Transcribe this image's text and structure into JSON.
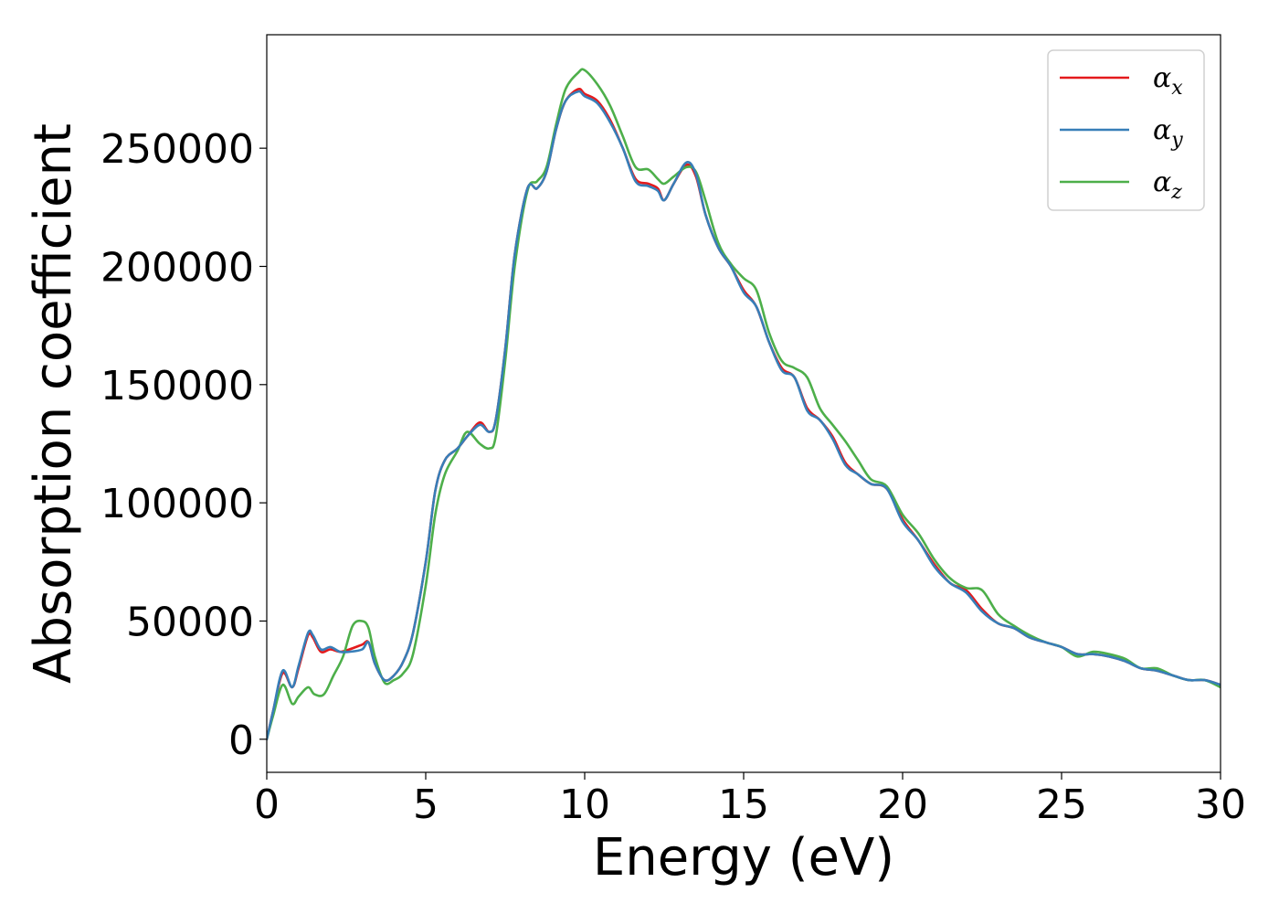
{
  "chart_data": {
    "type": "line",
    "xlabel": "Energy (eV)",
    "ylabel": "Absorption coefficient",
    "xlim": [
      0,
      30
    ],
    "ylim": [
      -14000,
      298000
    ],
    "xticks": [
      0,
      5,
      10,
      15,
      20,
      25,
      30
    ],
    "yticks": [
      0,
      50000,
      100000,
      150000,
      200000,
      250000
    ],
    "legend_position": "top-right",
    "grid": false,
    "series": [
      {
        "name": "αx",
        "symbol": "α",
        "subscript": "x",
        "color": "#e41a1c",
        "x": [
          0,
          0.2,
          0.5,
          0.8,
          1.0,
          1.3,
          1.45,
          1.7,
          2.0,
          2.3,
          2.6,
          3.0,
          3.2,
          3.4,
          3.7,
          4.0,
          4.3,
          4.6,
          5.0,
          5.3,
          5.6,
          6.0,
          6.3,
          6.7,
          7.0,
          7.2,
          7.5,
          7.8,
          8.2,
          8.5,
          8.8,
          9.1,
          9.4,
          9.8,
          10.0,
          10.4,
          10.8,
          11.2,
          11.6,
          12.0,
          12.3,
          12.5,
          12.8,
          13.2,
          13.5,
          13.8,
          14.2,
          14.6,
          15.0,
          15.4,
          15.8,
          16.2,
          16.6,
          17.0,
          17.4,
          17.8,
          18.2,
          18.6,
          19.0,
          19.5,
          20.0,
          20.5,
          21.0,
          21.5,
          22.0,
          22.5,
          23.0,
          23.5,
          24.0,
          24.5,
          25.0,
          25.5,
          26.0,
          26.5,
          27.0,
          27.5,
          28.0,
          28.5,
          29.0,
          29.5,
          30.0
        ],
        "y": [
          0,
          12000,
          28000,
          22000,
          30000,
          44000,
          43000,
          37000,
          38000,
          37000,
          38000,
          40000,
          41000,
          32000,
          25000,
          27000,
          33000,
          45000,
          75000,
          105000,
          118000,
          123000,
          128000,
          134000,
          130000,
          135000,
          165000,
          205000,
          233000,
          233000,
          240000,
          258000,
          270000,
          275000,
          273000,
          270000,
          262000,
          250000,
          237000,
          235000,
          233000,
          228000,
          235000,
          243000,
          238000,
          222000,
          208000,
          200000,
          190000,
          183000,
          168000,
          157000,
          153000,
          140000,
          135000,
          128000,
          117000,
          112000,
          108000,
          106000,
          93000,
          84000,
          74000,
          66000,
          63000,
          55000,
          49000,
          47000,
          43000,
          41000,
          39000,
          36000,
          36000,
          35000,
          33000,
          30000,
          29000,
          27000,
          25000,
          25000,
          23000
        ]
      },
      {
        "name": "αy",
        "symbol": "α",
        "subscript": "y",
        "color": "#377eb8",
        "x": [
          0,
          0.2,
          0.5,
          0.8,
          1.0,
          1.3,
          1.45,
          1.7,
          2.0,
          2.3,
          2.6,
          3.0,
          3.2,
          3.4,
          3.7,
          4.0,
          4.3,
          4.6,
          5.0,
          5.3,
          5.6,
          6.0,
          6.3,
          6.7,
          7.0,
          7.2,
          7.5,
          7.8,
          8.2,
          8.5,
          8.8,
          9.1,
          9.4,
          9.8,
          10.0,
          10.4,
          10.8,
          11.2,
          11.6,
          12.0,
          12.3,
          12.5,
          12.8,
          13.2,
          13.5,
          13.8,
          14.2,
          14.6,
          15.0,
          15.4,
          15.8,
          16.2,
          16.6,
          17.0,
          17.4,
          17.8,
          18.2,
          18.6,
          19.0,
          19.5,
          20.0,
          20.5,
          21.0,
          21.5,
          22.0,
          22.5,
          23.0,
          23.5,
          24.0,
          24.5,
          25.0,
          25.5,
          26.0,
          26.5,
          27.0,
          27.5,
          28.0,
          28.5,
          29.0,
          29.5,
          30.0
        ],
        "y": [
          0,
          12000,
          29000,
          22000,
          31000,
          45000,
          44000,
          38000,
          39000,
          37000,
          37000,
          38000,
          41000,
          32000,
          25000,
          27000,
          33000,
          45000,
          75000,
          105000,
          118000,
          123000,
          128000,
          133000,
          130000,
          135000,
          165000,
          205000,
          233000,
          233000,
          240000,
          258000,
          270000,
          274000,
          272000,
          269000,
          261000,
          250000,
          236000,
          234000,
          232000,
          228000,
          235000,
          244000,
          239000,
          222000,
          208000,
          200000,
          189000,
          183000,
          168000,
          156000,
          153000,
          139000,
          135000,
          127000,
          116000,
          112000,
          108000,
          106000,
          92000,
          84000,
          73000,
          66000,
          62000,
          54000,
          49000,
          47000,
          43000,
          41000,
          39000,
          36000,
          36000,
          35000,
          33000,
          30000,
          29000,
          27000,
          25000,
          25000,
          23000
        ]
      },
      {
        "name": "αz",
        "symbol": "α",
        "subscript": "z",
        "color": "#4daf4a",
        "x": [
          0,
          0.2,
          0.5,
          0.8,
          1.0,
          1.3,
          1.5,
          1.8,
          2.1,
          2.4,
          2.7,
          3.0,
          3.2,
          3.4,
          3.7,
          4.0,
          4.3,
          4.6,
          5.0,
          5.3,
          5.6,
          6.0,
          6.3,
          6.7,
          7.0,
          7.2,
          7.5,
          7.8,
          8.2,
          8.5,
          8.8,
          9.1,
          9.4,
          9.8,
          10.0,
          10.4,
          10.8,
          11.2,
          11.6,
          12.0,
          12.3,
          12.5,
          12.8,
          13.2,
          13.5,
          13.8,
          14.2,
          14.6,
          15.0,
          15.4,
          15.8,
          16.2,
          16.6,
          17.0,
          17.4,
          17.8,
          18.2,
          18.6,
          19.0,
          19.5,
          20.0,
          20.5,
          21.0,
          21.5,
          22.0,
          22.5,
          23.0,
          23.5,
          24.0,
          24.5,
          25.0,
          25.5,
          26.0,
          26.5,
          27.0,
          27.5,
          28.0,
          28.5,
          29.0,
          29.5,
          30.0
        ],
        "y": [
          0,
          10000,
          23000,
          15000,
          18000,
          22000,
          19000,
          19000,
          27000,
          35000,
          48000,
          50000,
          47000,
          35000,
          24000,
          25000,
          28000,
          36000,
          65000,
          95000,
          112000,
          122000,
          130000,
          125000,
          123000,
          128000,
          160000,
          200000,
          232000,
          236000,
          242000,
          260000,
          275000,
          282000,
          283000,
          277000,
          268000,
          255000,
          242000,
          241000,
          237000,
          235000,
          238000,
          242000,
          240000,
          228000,
          210000,
          201000,
          195000,
          190000,
          172000,
          160000,
          157000,
          153000,
          140000,
          133000,
          126000,
          118000,
          110000,
          107000,
          95000,
          87000,
          76000,
          68000,
          64000,
          63000,
          53000,
          48000,
          44000,
          41000,
          39000,
          35000,
          37000,
          36000,
          34000,
          30000,
          30000,
          27000,
          25000,
          25000,
          22000
        ]
      }
    ]
  }
}
